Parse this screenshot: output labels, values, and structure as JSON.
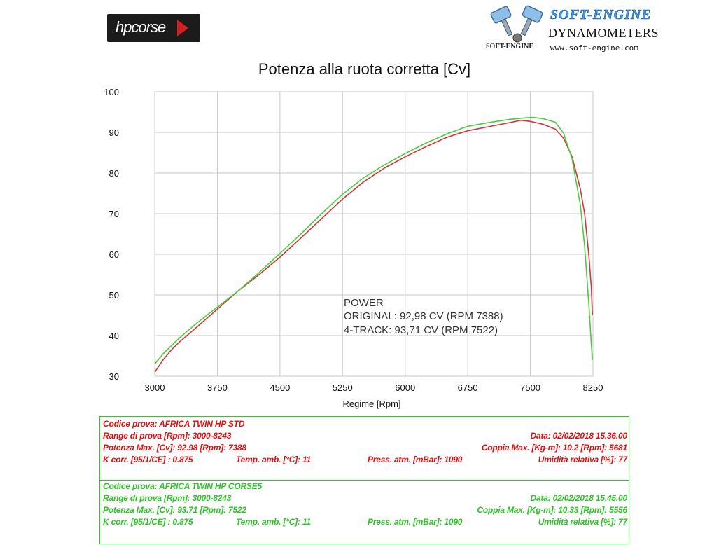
{
  "brand": {
    "hp_logo": "hpcorse",
    "se_name": "SOFT-ENGINE",
    "se_tagline": "DYNAMOMETERS",
    "se_url": "www.soft-engine.com",
    "se_small": "SOFT-ENGINE"
  },
  "annotation": {
    "heading": "POWER",
    "line1": "ORIGINAL: 92,98 CV (RPM 7388)",
    "line2": "4-TRACK: 93,71 CV (RPM 7522)"
  },
  "colors": {
    "original": "#d0343c",
    "track4": "#4ccc3c",
    "grid": "#c8c8c8",
    "red_text": "#e01010",
    "green_text": "#2ec428"
  },
  "chart_data": {
    "type": "line",
    "title": "Potenza alla ruota corretta [Cv]",
    "xlabel": "Regime [Rpm]",
    "ylabel": "",
    "xlim": [
      3000,
      8250
    ],
    "ylim": [
      30,
      100
    ],
    "xticks": [
      3000,
      3750,
      4500,
      5250,
      6000,
      6750,
      7500,
      8250
    ],
    "yticks": [
      30,
      40,
      50,
      60,
      70,
      80,
      90,
      100
    ],
    "grid": true,
    "series": [
      {
        "name": "ORIGINAL",
        "color": "#d0343c",
        "x": [
          3000,
          3100,
          3200,
          3300,
          3500,
          3750,
          4000,
          4250,
          4500,
          4750,
          5000,
          5250,
          5500,
          5750,
          6000,
          6250,
          6500,
          6750,
          7000,
          7250,
          7388,
          7500,
          7650,
          7800,
          7900,
          8000,
          8100,
          8150,
          8200,
          8230,
          8243
        ],
        "y": [
          31,
          34,
          36.5,
          38.5,
          42,
          46.5,
          51,
          55,
          59.3,
          64,
          68.8,
          73.6,
          77.8,
          81.2,
          84,
          86.5,
          88.8,
          90.4,
          91.4,
          92.4,
          92.98,
          92.7,
          92,
          90.8,
          88.5,
          84,
          76,
          70,
          60,
          52,
          45
        ]
      },
      {
        "name": "4-TRACK",
        "color": "#4ccc3c",
        "x": [
          3000,
          3100,
          3200,
          3300,
          3500,
          3750,
          4000,
          4250,
          4500,
          4750,
          5000,
          5250,
          5500,
          5750,
          6000,
          6250,
          6500,
          6750,
          7000,
          7250,
          7400,
          7522,
          7650,
          7800,
          7900,
          8000,
          8100,
          8150,
          8200,
          8230,
          8243
        ],
        "y": [
          33,
          35.5,
          37.5,
          39.5,
          43,
          47,
          51,
          55.5,
          60.2,
          65,
          70,
          74.8,
          78.8,
          82,
          84.8,
          87.4,
          89.6,
          91.5,
          92.4,
          93.2,
          93.5,
          93.71,
          93.4,
          92.5,
          89.7,
          83.5,
          72,
          62,
          48,
          38,
          34
        ]
      }
    ]
  },
  "test1": {
    "codice": "Codice prova: AFRICA TWIN HP STD",
    "range": "Range di prova [Rpm]: 3000-8243",
    "data": "Data: 02/02/2018   15.36.00",
    "potenza": "Potenza Max. [Cv]: 92.98   [Rpm]: 7388",
    "coppia": "Coppia Max. [Kg-m]: 10.2   [Rpm]: 5681",
    "kcorr": "K corr. [95/1/CE] : 0.875",
    "temp": "Temp. amb. [°C]: 11",
    "press": "Press. atm. [mBar]: 1090",
    "umid": "Umidità relativa [%]: 77"
  },
  "test2": {
    "codice": "Codice prova: AFRICA TWIN HP CORSE5",
    "range": "Range di prova [Rpm]: 3000-8243",
    "data": "Data: 02/02/2018   15.45.00",
    "potenza": "Potenza Max. [Cv]: 93.71   [Rpm]: 7522",
    "coppia": "Coppia Max. [Kg-m]: 10.33   [Rpm]: 5556",
    "kcorr": "K corr. [95/1/CE] : 0.875",
    "temp": "Temp. amb. [°C]: 11",
    "press": "Press. atm. [mBar]: 1090",
    "umid": "Umidità relativa [%]: 77"
  }
}
